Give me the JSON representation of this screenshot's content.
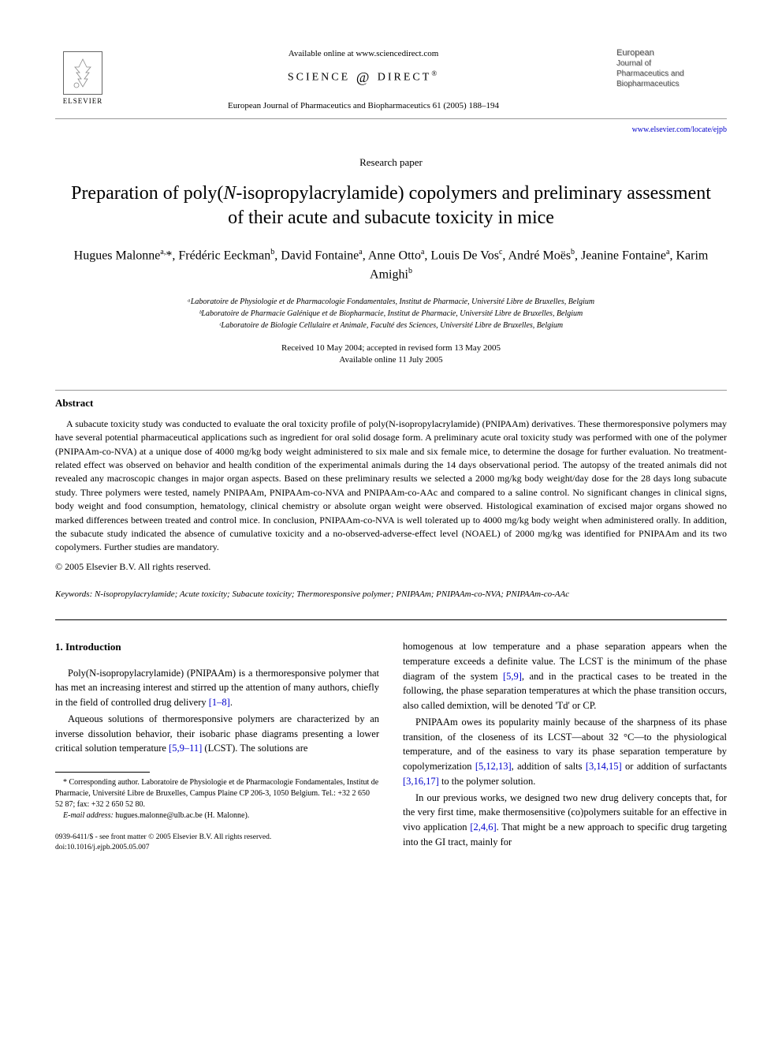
{
  "header": {
    "available_text": "Available online at www.sciencedirect.com",
    "science_direct": "SCIENCE",
    "science_direct2": "DIRECT",
    "elsevier": "ELSEVIER",
    "journal_ref": "European Journal of Pharmaceutics and Biopharmaceutics 61 (2005) 188–194",
    "journal_box_l1": "European",
    "journal_box_l2": "Journal of",
    "journal_box_l3": "Pharmaceutics and",
    "journal_box_l4": "Biopharmaceutics",
    "journal_link": "www.elsevier.com/locate/ejpb"
  },
  "article": {
    "type": "Research paper",
    "title": "Preparation of poly(N-isopropylacrylamide) copolymers and preliminary assessment of their acute and subacute toxicity in mice",
    "authors_html": "Hugues Malonne<sup>a,</sup>*, Frédéric Eeckman<sup>b</sup>, David Fontaine<sup>a</sup>, Anne Otto<sup>a</sup>, Louis De Vos<sup>c</sup>, André Moës<sup>b</sup>, Jeanine Fontaine<sup>a</sup>, Karim Amighi<sup>b</sup>",
    "affiliations": [
      "ᵃLaboratoire de Physiologie et de Pharmacologie Fondamentales, Institut de Pharmacie, Université Libre de Bruxelles, Belgium",
      "ᵇLaboratoire de Pharmacie Galénique et de Biopharmacie, Institut de Pharmacie, Université Libre de Bruxelles, Belgium",
      "ᶜLaboratoire de Biologie Cellulaire et Animale, Faculté des Sciences, Université Libre de Bruxelles, Belgium"
    ],
    "dates_l1": "Received 10 May 2004; accepted in revised form 13 May 2005",
    "dates_l2": "Available online 11 July 2005"
  },
  "abstract": {
    "heading": "Abstract",
    "text": "A subacute toxicity study was conducted to evaluate the oral toxicity profile of poly(N-isopropylacrylamide) (PNIPAAm) derivatives. These thermoresponsive polymers may have several potential pharmaceutical applications such as ingredient for oral solid dosage form. A preliminary acute oral toxicity study was performed with one of the polymer (PNIPAAm-co-NVA) at a unique dose of 4000 mg/kg body weight administered to six male and six female mice, to determine the dosage for further evaluation. No treatment-related effect was observed on behavior and health condition of the experimental animals during the 14 days observational period. The autopsy of the treated animals did not revealed any macroscopic changes in major organ aspects. Based on these preliminary results we selected a 2000 mg/kg body weight/day dose for the 28 days long subacute study. Three polymers were tested, namely PNIPAAm, PNIPAAm-co-NVA and PNIPAAm-co-AAc and compared to a saline control. No significant changes in clinical signs, body weight and food consumption, hematology, clinical chemistry or absolute organ weight were observed. Histological examination of excised major organs showed no marked differences between treated and control mice. In conclusion, PNIPAAm-co-NVA is well tolerated up to 4000 mg/kg body weight when administered orally. In addition, the subacute study indicated the absence of cumulative toxicity and a no-observed-adverse-effect level (NOAEL) of 2000 mg/kg was identified for PNIPAAm and its two copolymers. Further studies are mandatory.",
    "copyright": "© 2005 Elsevier B.V. All rights reserved."
  },
  "keywords": {
    "label": "Keywords:",
    "text": "N-isopropylacrylamide; Acute toxicity; Subacute toxicity; Thermoresponsive polymer; PNIPAAm; PNIPAAm-co-NVA; PNIPAAm-co-AAc"
  },
  "body": {
    "section_heading": "1. Introduction",
    "col1_p1": "Poly(N-isopropylacrylamide) (PNIPAAm) is a thermoresponsive polymer that has met an increasing interest and stirred up the attention of many authors, chiefly in the field of controlled drug delivery ",
    "col1_p1_ref": "[1–8]",
    "col1_p1_end": ".",
    "col1_p2_a": "Aqueous solutions of thermoresponsive polymers are characterized by an inverse dissolution behavior, their isobaric phase diagrams presenting a lower critical solution temperature ",
    "col1_p2_ref": "[5,9–11]",
    "col1_p2_b": " (LCST). The solutions are",
    "col2_p1_a": "homogenous at low temperature and a phase separation appears when the temperature exceeds a definite value. The LCST is the minimum of the phase diagram of the system ",
    "col2_p1_ref": "[5,9]",
    "col2_p1_b": ", and in the practical cases to be treated in the following, the phase separation temperatures at which the phase transition occurs, also called demixtion, will be denoted 'Td' or CP.",
    "col2_p2_a": "PNIPAAm owes its popularity mainly because of the sharpness of its phase transition, of the closeness of its LCST—about 32 °C—to the physiological temperature, and of the easiness to vary its phase separation temperature by copolymerization ",
    "col2_p2_ref1": "[5,12,13]",
    "col2_p2_b": ", addition of salts ",
    "col2_p2_ref2": "[3,14,15]",
    "col2_p2_c": " or addition of surfactants ",
    "col2_p2_ref3": "[3,16,17]",
    "col2_p2_d": " to the polymer solution.",
    "col2_p3_a": "In our previous works, we designed two new drug delivery concepts that, for the very first time, make thermosensitive (co)polymers suitable for an effective in vivo application ",
    "col2_p3_ref": "[2,4,6]",
    "col2_p3_b": ". That might be a new approach to specific drug targeting into the GI tract, mainly for"
  },
  "footnote": {
    "corr": "* Corresponding author. Laboratoire de Physiologie et de Pharmacologie Fondamentales, Institut de Pharmacie, Université Libre de Bruxelles, Campus Plaine CP 206-3, 1050 Belgium. Tel.: +32 2 650 52 87; fax: +32 2 650 52 80.",
    "email_label": "E-mail address:",
    "email": "hugues.malonne@ulb.ac.be (H. Malonne).",
    "footer_l1": "0939-6411/$ - see front matter © 2005 Elsevier B.V. All rights reserved.",
    "footer_l2": "doi:10.1016/j.ejpb.2005.05.007"
  },
  "colors": {
    "link": "#0000cc",
    "text": "#000000",
    "bg": "#ffffff"
  }
}
